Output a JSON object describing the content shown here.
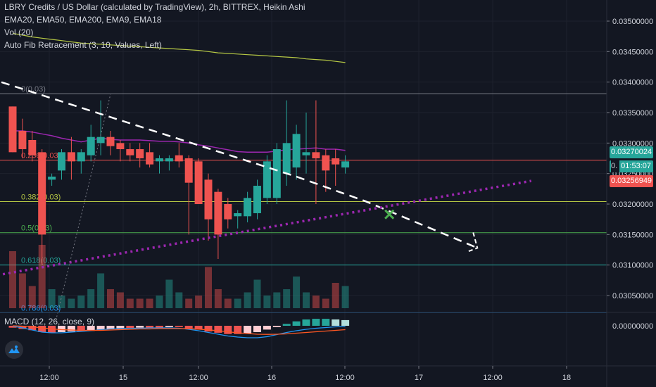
{
  "legend": {
    "title": "LBRY Credits / US Dollar (calculated by TradingView), 2h, BITTREX, Heikin Ashi",
    "emas": "EMA20, EMA50, EMA200, EMA9, EMA18",
    "vol": "Vol (20)",
    "fib": "Auto Fib Retracement (3, 10, Values, Left)",
    "macd": "MACD (12, 26, close, 9)"
  },
  "price_labels": {
    "last": "0.03270024",
    "countdown": "01:53:07",
    "countdown_prefix": "0.",
    "ema": "0.03256949"
  },
  "colors": {
    "up": "#26a69a",
    "down": "#ef5350",
    "ema200": "#b7c944",
    "ema_purple": "#9c27b0",
    "background": "#131722"
  },
  "chart_data": {
    "type": "candlestick",
    "title": "LBRY Credits / US Dollar (calculated by TradingView), 2h, BITTREX, Heikin Ashi",
    "x_ticks": [
      "12:00",
      "15",
      "12:00",
      "16",
      "12:00",
      "17",
      "12:00",
      "18"
    ],
    "y_ticks": [
      "0.03500000",
      "0.03450000",
      "0.03400000",
      "0.03350000",
      "0.03300000",
      "0.03250000",
      "0.03200000",
      "0.03150000",
      "0.03100000",
      "0.03050000"
    ],
    "macd_ticks": [
      "0.00000000"
    ],
    "ylim": [
      0.03015,
      0.0352
    ],
    "fib_levels": [
      {
        "label": "0(0.03)",
        "value": 0.03381,
        "color": "#787b86"
      },
      {
        "label": "0.236(0.03)",
        "value": 0.03272,
        "color": "#ef5350"
      },
      {
        "label": "0.382(0.03)",
        "value": 0.03204,
        "color": "#b7c944"
      },
      {
        "label": "0.5(0.03)",
        "value": 0.03153,
        "color": "#4caf50"
      },
      {
        "label": "0.618(0.03)",
        "value": 0.031,
        "color": "#26a69a"
      },
      {
        "label": "0.786(0.03)",
        "value": 0.03022,
        "color": "#2196f3"
      }
    ],
    "candles": [
      {
        "o": 0.0336,
        "h": 0.0336,
        "l": 0.03285,
        "c": 0.03285
      },
      {
        "o": 0.0332,
        "h": 0.0334,
        "l": 0.03275,
        "c": 0.0329
      },
      {
        "o": 0.03305,
        "h": 0.0332,
        "l": 0.0327,
        "c": 0.0328
      },
      {
        "o": 0.03285,
        "h": 0.0329,
        "l": 0.031,
        "c": 0.0315
      },
      {
        "o": 0.0324,
        "h": 0.0325,
        "l": 0.0323,
        "c": 0.03245
      },
      {
        "o": 0.03255,
        "h": 0.0329,
        "l": 0.0324,
        "c": 0.03285
      },
      {
        "o": 0.03285,
        "h": 0.0331,
        "l": 0.0324,
        "c": 0.0327
      },
      {
        "o": 0.0327,
        "h": 0.0329,
        "l": 0.0325,
        "c": 0.03285
      },
      {
        "o": 0.0328,
        "h": 0.0333,
        "l": 0.0327,
        "c": 0.0331
      },
      {
        "o": 0.033,
        "h": 0.0337,
        "l": 0.0328,
        "c": 0.0331
      },
      {
        "o": 0.0331,
        "h": 0.0332,
        "l": 0.0328,
        "c": 0.03295
      },
      {
        "o": 0.033,
        "h": 0.03305,
        "l": 0.0327,
        "c": 0.0329
      },
      {
        "o": 0.0329,
        "h": 0.033,
        "l": 0.0327,
        "c": 0.0328
      },
      {
        "o": 0.0329,
        "h": 0.033,
        "l": 0.0326,
        "c": 0.03275
      },
      {
        "o": 0.03285,
        "h": 0.033,
        "l": 0.0326,
        "c": 0.03265
      },
      {
        "o": 0.0327,
        "h": 0.0328,
        "l": 0.0325,
        "c": 0.03275
      },
      {
        "o": 0.0327,
        "h": 0.0328,
        "l": 0.03255,
        "c": 0.03275
      },
      {
        "o": 0.0328,
        "h": 0.033,
        "l": 0.0326,
        "c": 0.0327
      },
      {
        "o": 0.03275,
        "h": 0.0328,
        "l": 0.0315,
        "c": 0.03235
      },
      {
        "o": 0.0327,
        "h": 0.03275,
        "l": 0.032,
        "c": 0.032
      },
      {
        "o": 0.0324,
        "h": 0.0325,
        "l": 0.0314,
        "c": 0.03175
      },
      {
        "o": 0.0322,
        "h": 0.03225,
        "l": 0.0311,
        "c": 0.0315
      },
      {
        "o": 0.032,
        "h": 0.0321,
        "l": 0.0316,
        "c": 0.03175
      },
      {
        "o": 0.0318,
        "h": 0.0319,
        "l": 0.0316,
        "c": 0.03185
      },
      {
        "o": 0.0318,
        "h": 0.0322,
        "l": 0.0317,
        "c": 0.0321
      },
      {
        "o": 0.03185,
        "h": 0.0324,
        "l": 0.03175,
        "c": 0.0323
      },
      {
        "o": 0.0321,
        "h": 0.0328,
        "l": 0.032,
        "c": 0.0327
      },
      {
        "o": 0.0321,
        "h": 0.033,
        "l": 0.032,
        "c": 0.0329
      },
      {
        "o": 0.0325,
        "h": 0.0337,
        "l": 0.0323,
        "c": 0.033
      },
      {
        "o": 0.0326,
        "h": 0.0333,
        "l": 0.0324,
        "c": 0.03315
      },
      {
        "o": 0.0328,
        "h": 0.0335,
        "l": 0.0325,
        "c": 0.03285
      },
      {
        "o": 0.03285,
        "h": 0.0337,
        "l": 0.032,
        "c": 0.03275
      },
      {
        "o": 0.0328,
        "h": 0.0329,
        "l": 0.0322,
        "c": 0.03255
      },
      {
        "o": 0.03275,
        "h": 0.0329,
        "l": 0.0323,
        "c": 0.03265
      },
      {
        "o": 0.0326,
        "h": 0.0328,
        "l": 0.0325,
        "c": 0.0327
      }
    ],
    "volume": [
      {
        "v": 0.9,
        "up": false
      },
      {
        "v": 0.55,
        "up": false
      },
      {
        "v": 0.35,
        "up": false
      },
      {
        "v": 1.0,
        "up": false
      },
      {
        "v": 0.3,
        "up": true
      },
      {
        "v": 0.2,
        "up": true
      },
      {
        "v": 0.15,
        "up": true
      },
      {
        "v": 0.2,
        "up": true
      },
      {
        "v": 0.3,
        "up": true
      },
      {
        "v": 0.55,
        "up": true
      },
      {
        "v": 0.3,
        "up": false
      },
      {
        "v": 0.25,
        "up": false
      },
      {
        "v": 0.15,
        "up": false
      },
      {
        "v": 0.15,
        "up": false
      },
      {
        "v": 0.15,
        "up": false
      },
      {
        "v": 0.2,
        "up": true
      },
      {
        "v": 0.45,
        "up": true
      },
      {
        "v": 0.25,
        "up": true
      },
      {
        "v": 0.15,
        "up": false
      },
      {
        "v": 0.2,
        "up": false
      },
      {
        "v": 0.65,
        "up": false
      },
      {
        "v": 0.3,
        "up": false
      },
      {
        "v": 0.15,
        "up": false
      },
      {
        "v": 0.15,
        "up": true
      },
      {
        "v": 0.25,
        "up": true
      },
      {
        "v": 0.45,
        "up": true
      },
      {
        "v": 0.2,
        "up": true
      },
      {
        "v": 0.25,
        "up": true
      },
      {
        "v": 0.3,
        "up": true
      },
      {
        "v": 0.5,
        "up": true
      },
      {
        "v": 0.25,
        "up": true
      },
      {
        "v": 0.2,
        "up": false
      },
      {
        "v": 0.15,
        "up": false
      },
      {
        "v": 0.4,
        "up": false
      },
      {
        "v": 0.35,
        "up": true
      }
    ],
    "macd_hist": [
      -0.15,
      -0.25,
      -0.35,
      -0.5,
      -0.55,
      -0.5,
      -0.45,
      -0.45,
      -0.4,
      -0.3,
      -0.25,
      -0.2,
      -0.2,
      -0.15,
      -0.15,
      -0.15,
      -0.1,
      -0.1,
      -0.2,
      -0.3,
      -0.45,
      -0.55,
      -0.65,
      -0.65,
      -0.6,
      -0.5,
      -0.3,
      -0.1,
      0.15,
      0.35,
      0.5,
      0.55,
      0.55,
      0.5,
      0.45
    ],
    "macd_line": [
      -0.05,
      -0.3,
      -0.6,
      -0.9,
      -1.0,
      -1.0,
      -0.9,
      -0.8,
      -0.7,
      -0.55,
      -0.45,
      -0.4,
      -0.35,
      -0.35,
      -0.3,
      -0.3,
      -0.3,
      -0.35,
      -0.5,
      -0.7,
      -0.95,
      -1.2,
      -1.45,
      -1.6,
      -1.7,
      -1.7,
      -1.55,
      -1.25,
      -0.95,
      -0.7,
      -0.5,
      -0.35,
      -0.25,
      -0.15,
      -0.1
    ],
    "signal_line": [
      0.0,
      -0.05,
      -0.15,
      -0.3,
      -0.45,
      -0.55,
      -0.6,
      -0.65,
      -0.65,
      -0.65,
      -0.6,
      -0.55,
      -0.5,
      -0.45,
      -0.45,
      -0.4,
      -0.4,
      -0.4,
      -0.42,
      -0.48,
      -0.58,
      -0.7,
      -0.85,
      -1.0,
      -1.1,
      -1.2,
      -1.22,
      -1.2,
      -1.15,
      -1.05,
      -0.95,
      -0.85,
      -0.75,
      -0.65,
      -0.55
    ],
    "ema_purple": [
      0.0332,
      0.0332,
      0.03318,
      0.03315,
      0.03312,
      0.03308,
      0.03305,
      0.03302,
      0.03305,
      0.03308,
      0.03306,
      0.03305,
      0.03305,
      0.03305,
      0.03304,
      0.03303,
      0.03303,
      0.03302,
      0.033,
      0.03297,
      0.03295,
      0.03292,
      0.03289,
      0.03286,
      0.03285,
      0.03285,
      0.03285,
      0.03287,
      0.03289,
      0.0329,
      0.03291,
      0.03292,
      0.0329,
      0.0329,
      0.03288
    ],
    "ema200": [
      0.0348,
      0.03477,
      0.03474,
      0.03472,
      0.0347,
      0.03468,
      0.03466,
      0.03464,
      0.03463,
      0.03462,
      0.03461,
      0.0346,
      0.03459,
      0.03458,
      0.03457,
      0.03456,
      0.03455,
      0.03454,
      0.03453,
      0.03452,
      0.0345,
      0.03448,
      0.03447,
      0.03446,
      0.03445,
      0.03444,
      0.03443,
      0.03442,
      0.03441,
      0.0344,
      0.03438,
      0.03437,
      0.03436,
      0.03434,
      0.03432
    ],
    "trendline_down": [
      {
        "i": -8,
        "p": 0.03435
      },
      {
        "i": 29,
        "p": 0.03245
      },
      {
        "i": 36,
        "p": 0.03205
      },
      {
        "i": 45,
        "p": 0.03145
      },
      {
        "i": 47.5,
        "p": 0.03128
      }
    ],
    "trendline_up_dotted": [
      {
        "i": -1,
        "p": 0.03085
      },
      {
        "i": 53,
        "p": 0.03238
      }
    ],
    "gray_dotted": [
      {
        "i": 4.5,
        "p": 0.03015
      },
      {
        "i": 10,
        "p": 0.0338
      }
    ],
    "cross_marker": {
      "i": 38.5,
      "p": 0.03183
    }
  }
}
